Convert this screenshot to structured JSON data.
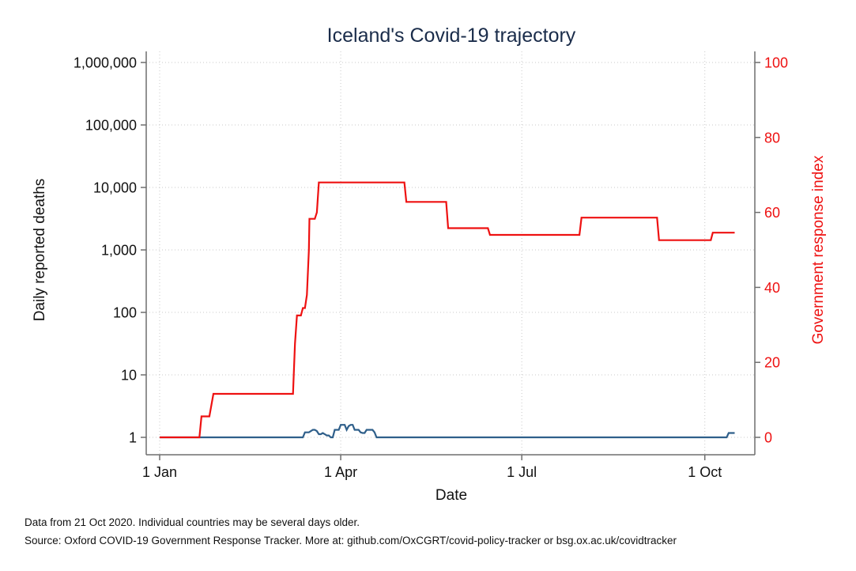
{
  "chart_data": {
    "type": "line",
    "title": "Iceland's Covid-19 trajectory",
    "xlabel": "Date",
    "ylabel_left": "Daily reported deaths",
    "ylabel_right": "Government response index",
    "x_domain_days": [
      0,
      290
    ],
    "x_ticks": [
      {
        "day": 0,
        "label": "1 Jan"
      },
      {
        "day": 91,
        "label": "1 Apr"
      },
      {
        "day": 182,
        "label": "1 Jul"
      },
      {
        "day": 274,
        "label": "1 Oct"
      }
    ],
    "left_axis": {
      "scale": "log",
      "log10_range": [
        0,
        6
      ],
      "ticks": [
        {
          "log10": 0,
          "label": "1"
        },
        {
          "log10": 1,
          "label": "10"
        },
        {
          "log10": 2,
          "label": "100"
        },
        {
          "log10": 3,
          "label": "1,000"
        },
        {
          "log10": 4,
          "label": "10,000"
        },
        {
          "log10": 5,
          "label": "100,000"
        },
        {
          "log10": 6,
          "label": "1,000,000"
        }
      ]
    },
    "right_axis": {
      "scale": "linear",
      "range": [
        0,
        100
      ],
      "ticks": [
        {
          "value": 0,
          "label": "0"
        },
        {
          "value": 20,
          "label": "20"
        },
        {
          "value": 40,
          "label": "40"
        },
        {
          "value": 60,
          "label": "60"
        },
        {
          "value": 80,
          "label": "80"
        },
        {
          "value": 100,
          "label": "100"
        }
      ]
    },
    "grid": true,
    "series": [
      {
        "name": "Daily reported deaths",
        "axis": "left",
        "color": "#2f5f8a",
        "points": [
          [
            0,
            0
          ],
          [
            72,
            0
          ],
          [
            73,
            0.08
          ],
          [
            75,
            0.08
          ],
          [
            76,
            0.1
          ],
          [
            77,
            0.12
          ],
          [
            78,
            0.12
          ],
          [
            79,
            0.1
          ],
          [
            80,
            0.05
          ],
          [
            81,
            0.05
          ],
          [
            82,
            0.07
          ],
          [
            83,
            0.05
          ],
          [
            84,
            0.03
          ],
          [
            85,
            0.03
          ],
          [
            86,
            0
          ],
          [
            87,
            0
          ],
          [
            88,
            0.12
          ],
          [
            89,
            0.12
          ],
          [
            90,
            0.12
          ],
          [
            91,
            0.2
          ],
          [
            92,
            0.2
          ],
          [
            93,
            0.2
          ],
          [
            94,
            0.12
          ],
          [
            95,
            0.18
          ],
          [
            96,
            0.2
          ],
          [
            97,
            0.2
          ],
          [
            98,
            0.12
          ],
          [
            99,
            0.12
          ],
          [
            100,
            0.12
          ],
          [
            101,
            0.08
          ],
          [
            102,
            0.07
          ],
          [
            103,
            0.07
          ],
          [
            104,
            0.12
          ],
          [
            105,
            0.12
          ],
          [
            106,
            0.12
          ],
          [
            107,
            0.12
          ],
          [
            108,
            0.08
          ],
          [
            109,
            0
          ],
          [
            110,
            0
          ],
          [
            285,
            0
          ],
          [
            286,
            0.07
          ],
          [
            287,
            0.07
          ],
          [
            289,
            0.07
          ]
        ]
      },
      {
        "name": "Government response index",
        "axis": "right",
        "color": "#ee1111",
        "points": [
          [
            0,
            0
          ],
          [
            20,
            0
          ],
          [
            21,
            5.6
          ],
          [
            25,
            5.6
          ],
          [
            27,
            11.6
          ],
          [
            67,
            11.6
          ],
          [
            68,
            25
          ],
          [
            69,
            32.5
          ],
          [
            71,
            32.5
          ],
          [
            72,
            34.5
          ],
          [
            73,
            34.5
          ],
          [
            74,
            38
          ],
          [
            75,
            50
          ],
          [
            75.3,
            58.3
          ],
          [
            78,
            58.3
          ],
          [
            79,
            60
          ],
          [
            80,
            68
          ],
          [
            123,
            68
          ],
          [
            124,
            62.8
          ],
          [
            144,
            62.8
          ],
          [
            145,
            55.8
          ],
          [
            165,
            55.8
          ],
          [
            166,
            54
          ],
          [
            211,
            54
          ],
          [
            212,
            58.6
          ],
          [
            250,
            58.6
          ],
          [
            251,
            52.6
          ],
          [
            277,
            52.6
          ],
          [
            278,
            54.6
          ],
          [
            289,
            54.6
          ]
        ]
      }
    ]
  },
  "footnotes": {
    "line1": "Data from 21 Oct 2020. Individual countries may be several days older.",
    "line2": "Source: Oxford COVID-19 Government Response Tracker. More at: github.com/OxCGRT/covid-policy-tracker or bsg.ox.ac.uk/covidtracker"
  }
}
